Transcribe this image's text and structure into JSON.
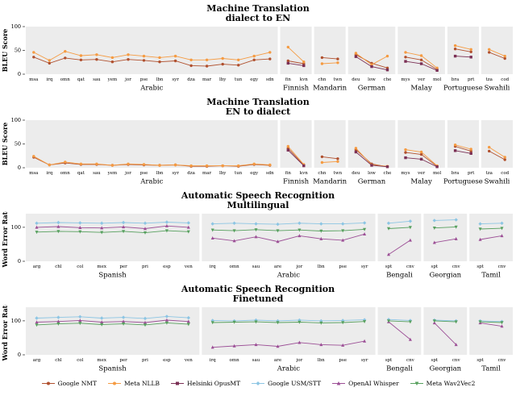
{
  "legend": {
    "items": [
      {
        "label": "Google NMT"
      },
      {
        "label": "Meta NLLB"
      },
      {
        "label": "Helsinki OpusMT"
      },
      {
        "label": "Google USM/STT"
      },
      {
        "label": "OpenAI Whisper"
      },
      {
        "label": "Meta Wav2Vec2"
      }
    ]
  },
  "series_styles": {
    "Google NMT": {
      "color": "#b0502e",
      "marker": "circle"
    },
    "Meta NLLB": {
      "color": "#f59b42",
      "marker": "circle"
    },
    "Helsinki OpusMT": {
      "color": "#7b3055",
      "marker": "square"
    },
    "Google USM/STT": {
      "color": "#8cc5e3",
      "marker": "diamond"
    },
    "OpenAI Whisper": {
      "color": "#9c4f96",
      "marker": "triangle"
    },
    "Meta Wav2Vec2": {
      "color": "#57a05e",
      "marker": "triangle-down"
    }
  },
  "panel_background": "#ececec",
  "chart_data": [
    {
      "type": "line",
      "title1": "Machine Translation",
      "title2": "dialect to EN",
      "ylabel": "BLEU Score",
      "ylim": [
        0,
        100
      ],
      "yticks": [
        0,
        50,
        100
      ],
      "panels": [
        {
          "language": "Arabic",
          "categories": [
            "msa",
            "irq",
            "omn",
            "qat",
            "sau",
            "yem",
            "jor",
            "pse",
            "lbn",
            "syr",
            "dza",
            "mar",
            "lby",
            "tun",
            "egy",
            "sdn"
          ],
          "series": [
            {
              "name": "Google NMT",
              "values": [
                36,
                23,
                34,
                30,
                31,
                26,
                31,
                29,
                26,
                28,
                18,
                17,
                21,
                19,
                30,
                32
              ]
            },
            {
              "name": "Meta NLLB",
              "values": [
                46,
                29,
                48,
                39,
                41,
                35,
                41,
                38,
                35,
                38,
                30,
                30,
                33,
                30,
                38,
                46
              ]
            }
          ]
        },
        {
          "language": "Finnish",
          "categories": [
            "fin",
            "kvn"
          ],
          "series": [
            {
              "name": "Google NMT",
              "values": [
                28,
                22
              ]
            },
            {
              "name": "Meta NLLB",
              "values": [
                57,
                26
              ]
            },
            {
              "name": "Helsinki OpusMT",
              "values": [
                23,
                18
              ]
            }
          ]
        },
        {
          "language": "Mandarin",
          "categories": [
            "chn",
            "twn"
          ],
          "series": [
            {
              "name": "Google NMT",
              "values": [
                35,
                32
              ]
            },
            {
              "name": "Meta NLLB",
              "values": [
                22,
                24
              ]
            }
          ]
        },
        {
          "language": "German",
          "categories": [
            "deu",
            "low",
            "che"
          ],
          "series": [
            {
              "name": "Google NMT",
              "values": [
                41,
                23,
                13
              ]
            },
            {
              "name": "Meta NLLB",
              "values": [
                44,
                20,
                38
              ]
            },
            {
              "name": "Helsinki OpusMT",
              "values": [
                37,
                16,
                9
              ]
            }
          ]
        },
        {
          "language": "Malay",
          "categories": [
            "mys",
            "ver",
            "mol"
          ],
          "series": [
            {
              "name": "Google NMT",
              "values": [
                36,
                30,
                10
              ]
            },
            {
              "name": "Meta NLLB",
              "values": [
                46,
                39,
                13
              ]
            },
            {
              "name": "Helsinki OpusMT",
              "values": [
                27,
                22,
                8
              ]
            }
          ]
        },
        {
          "language": "Portuguese",
          "categories": [
            "bra",
            "prt"
          ],
          "series": [
            {
              "name": "Google NMT",
              "values": [
                53,
                47
              ]
            },
            {
              "name": "Meta NLLB",
              "values": [
                60,
                52
              ]
            },
            {
              "name": "Helsinki OpusMT",
              "values": [
                38,
                36
              ]
            }
          ]
        },
        {
          "language": "Swahili",
          "categories": [
            "tza",
            "cod"
          ],
          "series": [
            {
              "name": "Google NMT",
              "values": [
                46,
                33
              ]
            },
            {
              "name": "Meta NLLB",
              "values": [
                52,
                38
              ]
            }
          ]
        }
      ]
    },
    {
      "type": "line",
      "title1": "Machine Translation",
      "title2": "EN to dialect",
      "ylabel": "BLEU Score",
      "ylim": [
        0,
        100
      ],
      "yticks": [
        0,
        50,
        100
      ],
      "panels": [
        {
          "language": "Arabic",
          "categories": [
            "msa",
            "irq",
            "omn",
            "qat",
            "sau",
            "yem",
            "jor",
            "pse",
            "lbn",
            "syr",
            "dza",
            "mar",
            "lby",
            "tun",
            "egy",
            "sdn"
          ],
          "series": [
            {
              "name": "Google NMT",
              "values": [
                22,
                6,
                10,
                7,
                7,
                5,
                7,
                6,
                5,
                6,
                3,
                3,
                4,
                3,
                7,
                5
              ]
            },
            {
              "name": "Meta NLLB",
              "values": [
                24,
                6,
                12,
                8,
                8,
                5,
                8,
                7,
                5,
                6,
                4,
                4,
                4,
                4,
                8,
                6
              ]
            }
          ]
        },
        {
          "language": "Finnish",
          "categories": [
            "fin",
            "kvn"
          ],
          "series": [
            {
              "name": "Google NMT",
              "values": [
                41,
                5
              ]
            },
            {
              "name": "Meta NLLB",
              "values": [
                45,
                7
              ]
            },
            {
              "name": "Helsinki OpusMT",
              "values": [
                37,
                4
              ]
            }
          ]
        },
        {
          "language": "Mandarin",
          "categories": [
            "chn",
            "twn"
          ],
          "series": [
            {
              "name": "Google NMT",
              "values": [
                23,
                19
              ]
            },
            {
              "name": "Meta NLLB",
              "values": [
                11,
                13
              ]
            }
          ]
        },
        {
          "language": "German",
          "categories": [
            "deu",
            "low",
            "che"
          ],
          "series": [
            {
              "name": "Google NMT",
              "values": [
                38,
                8,
                2
              ]
            },
            {
              "name": "Meta NLLB",
              "values": [
                41,
                6,
                3
              ]
            },
            {
              "name": "Helsinki OpusMT",
              "values": [
                33,
                5,
                2
              ]
            }
          ]
        },
        {
          "language": "Malay",
          "categories": [
            "mys",
            "ver",
            "mol"
          ],
          "series": [
            {
              "name": "Google NMT",
              "values": [
                32,
                28,
                3
              ]
            },
            {
              "name": "Meta NLLB",
              "values": [
                38,
                33,
                4
              ]
            },
            {
              "name": "Helsinki OpusMT",
              "values": [
                21,
                18,
                2
              ]
            }
          ]
        },
        {
          "language": "Portuguese",
          "categories": [
            "bra",
            "prt"
          ],
          "series": [
            {
              "name": "Google NMT",
              "values": [
                45,
                35
              ]
            },
            {
              "name": "Meta NLLB",
              "values": [
                48,
                39
              ]
            },
            {
              "name": "Helsinki OpusMT",
              "values": [
                36,
                30
              ]
            }
          ]
        },
        {
          "language": "Swahili",
          "categories": [
            "tza",
            "cod"
          ],
          "series": [
            {
              "name": "Google NMT",
              "values": [
                35,
                17
              ]
            },
            {
              "name": "Meta NLLB",
              "values": [
                43,
                22
              ]
            }
          ]
        }
      ]
    },
    {
      "type": "line",
      "title1": "Automatic Speech Recognition",
      "title2": "Multilingual",
      "ylabel": "Word Error Rate",
      "ylim": [
        0,
        140
      ],
      "yticks": [
        0,
        100
      ],
      "panels": [
        {
          "language": "Spanish",
          "categories": [
            "arg",
            "chl",
            "col",
            "mex",
            "per",
            "pri",
            "esp",
            "ven"
          ],
          "series": [
            {
              "name": "Google USM/STT",
              "values": [
                112,
                114,
                113,
                112,
                114,
                112,
                115,
                113
              ]
            },
            {
              "name": "OpenAI Whisper",
              "values": [
                100,
                102,
                99,
                98,
                101,
                96,
                104,
                100
              ]
            },
            {
              "name": "Meta Wav2Vec2",
              "values": [
                86,
                88,
                87,
                85,
                88,
                84,
                90,
                87
              ]
            }
          ]
        },
        {
          "language": "Arabic",
          "categories": [
            "irq",
            "omn",
            "sau",
            "are",
            "jor",
            "lbn",
            "pse",
            "syr"
          ],
          "series": [
            {
              "name": "Google USM/STT",
              "values": [
                110,
                112,
                110,
                109,
                112,
                110,
                110,
                113
              ]
            },
            {
              "name": "OpenAI Whisper",
              "values": [
                68,
                60,
                72,
                58,
                75,
                66,
                62,
                80
              ]
            },
            {
              "name": "Meta Wav2Vec2",
              "values": [
                92,
                90,
                93,
                90,
                92,
                89,
                90,
                94
              ]
            }
          ]
        },
        {
          "language": "Bengali",
          "categories": [
            "spt",
            "cnv"
          ],
          "series": [
            {
              "name": "Google USM/STT",
              "values": [
                112,
                118
              ]
            },
            {
              "name": "OpenAI Whisper",
              "values": [
                20,
                62
              ]
            },
            {
              "name": "Meta Wav2Vec2",
              "values": [
                96,
                100
              ]
            }
          ]
        },
        {
          "language": "Georgian",
          "categories": [
            "spt",
            "cnv"
          ],
          "series": [
            {
              "name": "Google USM/STT",
              "values": [
                120,
                122
              ]
            },
            {
              "name": "OpenAI Whisper",
              "values": [
                55,
                66
              ]
            },
            {
              "name": "Meta Wav2Vec2",
              "values": [
                98,
                101
              ]
            }
          ]
        },
        {
          "language": "Tamil",
          "categories": [
            "spt",
            "cnv"
          ],
          "series": [
            {
              "name": "Google USM/STT",
              "values": [
                110,
                112
              ]
            },
            {
              "name": "OpenAI Whisper",
              "values": [
                64,
                75
              ]
            },
            {
              "name": "Meta Wav2Vec2",
              "values": [
                95,
                97
              ]
            }
          ]
        }
      ]
    },
    {
      "type": "line",
      "title1": "Automatic Speech Recognition",
      "title2": "Finetuned",
      "ylabel": "Word Error Rate",
      "ylim": [
        0,
        140
      ],
      "yticks": [
        0,
        100
      ],
      "panels": [
        {
          "language": "Spanish",
          "categories": [
            "arg",
            "chl",
            "col",
            "mex",
            "per",
            "pri",
            "esp",
            "ven"
          ],
          "series": [
            {
              "name": "Google USM/STT",
              "values": [
                108,
                110,
                112,
                108,
                110,
                107,
                113,
                109
              ]
            },
            {
              "name": "OpenAI Whisper",
              "values": [
                96,
                98,
                101,
                96,
                98,
                95,
                102,
                98
              ]
            },
            {
              "name": "Meta Wav2Vec2",
              "values": [
                88,
                91,
                93,
                89,
                91,
                88,
                94,
                90
              ]
            }
          ]
        },
        {
          "language": "Arabic",
          "categories": [
            "irq",
            "omn",
            "sau",
            "are",
            "jor",
            "lbn",
            "pse",
            "syr"
          ],
          "series": [
            {
              "name": "Google USM/STT",
              "values": [
                101,
                100,
                102,
                100,
                102,
                100,
                101,
                103
              ]
            },
            {
              "name": "OpenAI Whisper",
              "values": [
                22,
                26,
                30,
                25,
                36,
                30,
                28,
                40
              ]
            },
            {
              "name": "Meta Wav2Vec2",
              "values": [
                95,
                96,
                97,
                95,
                96,
                94,
                95,
                98
              ]
            }
          ]
        },
        {
          "language": "Bengali",
          "categories": [
            "spt",
            "cnv"
          ],
          "series": [
            {
              "name": "Google USM/STT",
              "values": [
                104,
                101
              ]
            },
            {
              "name": "OpenAI Whisper",
              "values": [
                97,
                45
              ]
            },
            {
              "name": "Meta Wav2Vec2",
              "values": [
                100,
                97
              ]
            }
          ]
        },
        {
          "language": "Georgian",
          "categories": [
            "spt",
            "cnv"
          ],
          "series": [
            {
              "name": "Google USM/STT",
              "values": [
                102,
                100
              ]
            },
            {
              "name": "OpenAI Whisper",
              "values": [
                94,
                30
              ]
            },
            {
              "name": "Meta Wav2Vec2",
              "values": [
                100,
                97
              ]
            }
          ]
        },
        {
          "language": "Tamil",
          "categories": [
            "spt",
            "cnv"
          ],
          "series": [
            {
              "name": "Google USM/STT",
              "values": [
                100,
                98
              ]
            },
            {
              "name": "OpenAI Whisper",
              "values": [
                94,
                84
              ]
            },
            {
              "name": "Meta Wav2Vec2",
              "values": [
                97,
                95
              ]
            }
          ]
        }
      ]
    }
  ]
}
